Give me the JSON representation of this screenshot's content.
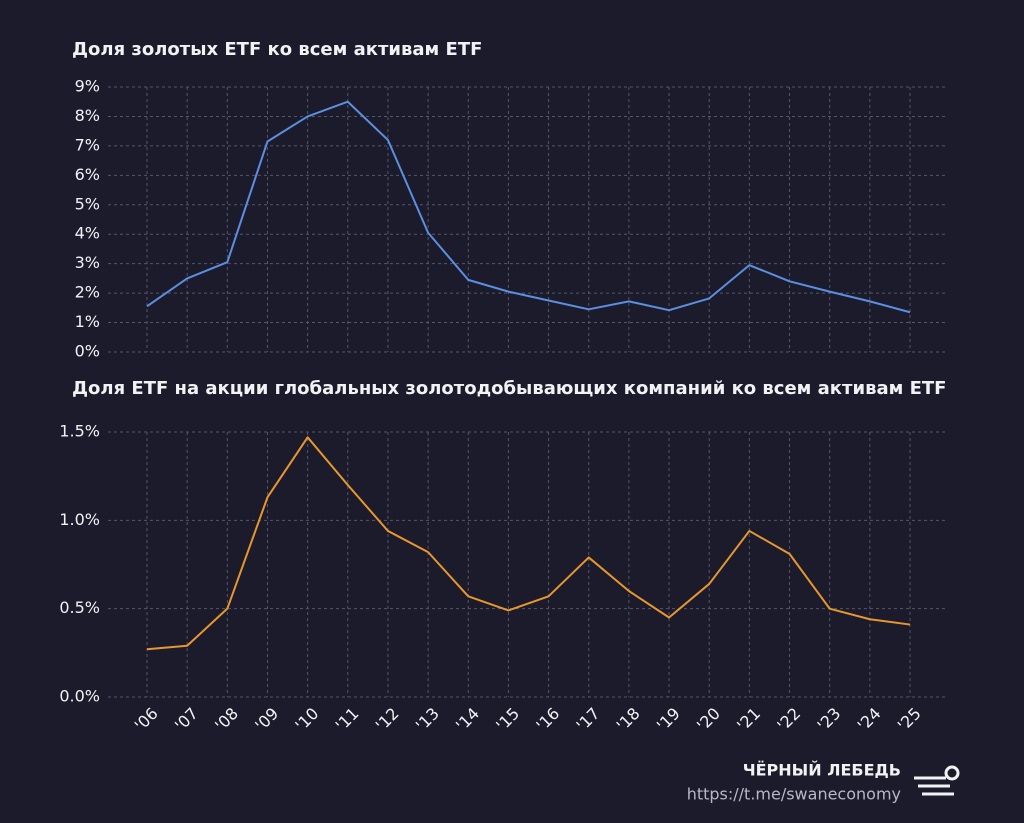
{
  "chart_data": [
    {
      "type": "line",
      "title": "Доля золотых ETF ко всем активам ETF",
      "values": [
        1.55,
        2.5,
        3.05,
        7.15,
        8.0,
        8.5,
        7.2,
        4.05,
        2.45,
        2.05,
        1.75,
        1.45,
        1.72,
        1.42,
        1.82,
        2.95,
        2.4,
        2.05,
        1.72,
        1.35
      ],
      "color": "#5b8fe0",
      "grid": true,
      "ylim": [
        0,
        9
      ],
      "yticks": [
        {
          "value": 0,
          "label": "0%"
        },
        {
          "value": 1,
          "label": "1%"
        },
        {
          "value": 2,
          "label": "2%"
        },
        {
          "value": 3,
          "label": "3%"
        },
        {
          "value": 4,
          "label": "4%"
        },
        {
          "value": 5,
          "label": "5%"
        },
        {
          "value": 6,
          "label": "6%"
        },
        {
          "value": 7,
          "label": "7%"
        },
        {
          "value": 8,
          "label": "8%"
        },
        {
          "value": 9,
          "label": "9%"
        }
      ]
    },
    {
      "type": "line",
      "title": "Доля ETF на акции глобальных золотодобывающих компаний ко всем активам ETF",
      "categories": [
        "'06",
        "'07",
        "'08",
        "'09",
        "'10",
        "'11",
        "'12",
        "'13",
        "'14",
        "'15",
        "'16",
        "'17",
        "'18",
        "'19",
        "'20",
        "'21",
        "'22",
        "'23",
        "'24",
        "'25"
      ],
      "values": [
        0.27,
        0.29,
        0.5,
        1.13,
        1.47,
        1.2,
        0.94,
        0.82,
        0.57,
        0.49,
        0.57,
        0.79,
        0.6,
        0.45,
        0.64,
        0.94,
        0.81,
        0.5,
        0.44,
        0.41
      ],
      "color": "#e8962e",
      "grid": true,
      "ylim": [
        0,
        1.5
      ],
      "yticks": [
        {
          "value": 0,
          "label": "0.0%"
        },
        {
          "value": 0.5,
          "label": "0.5%"
        },
        {
          "value": 1,
          "label": "1.0%"
        },
        {
          "value": 1.5,
          "label": "1.5%"
        }
      ]
    }
  ],
  "footer": {
    "brand": "ЧЁРНЫЙ ЛЕБЕДЬ",
    "url": "https://t.me/swaneconomy"
  }
}
